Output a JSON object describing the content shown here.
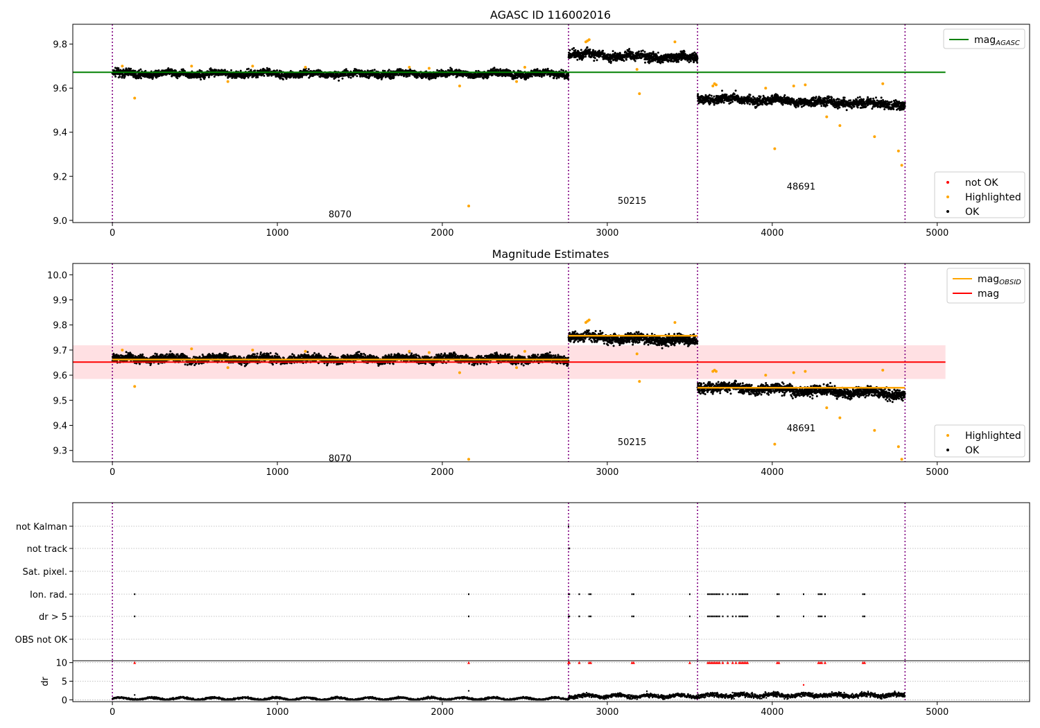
{
  "figure": {
    "background": "#ffffff",
    "colors": {
      "ok": "#000000",
      "highlighted": "#ffa500",
      "not_ok": "#ff0000",
      "agasc_line": "#008000",
      "obsid_line": "#ffa500",
      "mag_line": "#ff0000",
      "mag_band": "#ffe0e3",
      "obs_boundary": "#800080",
      "grid": "#b0b0b0"
    },
    "obs_boundaries": [
      0,
      2765,
      3547,
      4805
    ]
  },
  "chart_data": [
    {
      "id": "top",
      "type": "scatter",
      "title": "AGASC ID 116002016",
      "xlim": [
        -240,
        5560
      ],
      "ylim": [
        8.99,
        9.89
      ],
      "xticks": [
        0,
        1000,
        2000,
        3000,
        4000,
        5000
      ],
      "xtick_labels": [
        "0",
        "1000",
        "2000",
        "3000",
        "4000",
        "5000"
      ],
      "yticks": [
        9.0,
        9.2,
        9.4,
        9.6,
        9.8
      ],
      "ytick_labels": [
        "9.0",
        "9.2",
        "9.4",
        "9.6",
        "9.8"
      ],
      "segments": [
        {
          "obsid": "8070",
          "x": [
            0,
            2765
          ],
          "level": 9.665,
          "spread": 0.011,
          "drift": 0
        },
        {
          "obsid": "50215",
          "x": [
            2765,
            3547
          ],
          "level": 9.755,
          "spread": 0.014,
          "drift": -0.02
        },
        {
          "obsid": "48691",
          "x": [
            3547,
            4805
          ],
          "level": 9.555,
          "spread": 0.014,
          "drift": -0.03
        }
      ],
      "obsid_labels": [
        {
          "text": "8070",
          "x": 1380,
          "y": 9.03
        },
        {
          "text": "50215",
          "x": 3150,
          "y": 9.09
        },
        {
          "text": "48691",
          "x": 4175,
          "y": 9.155
        }
      ],
      "highlighted_points": [
        [
          60,
          9.7
        ],
        [
          135,
          9.555
        ],
        [
          480,
          9.7
        ],
        [
          700,
          9.63
        ],
        [
          850,
          9.7
        ],
        [
          1170,
          9.695
        ],
        [
          1800,
          9.695
        ],
        [
          1920,
          9.69
        ],
        [
          2105,
          9.61
        ],
        [
          2160,
          9.065
        ],
        [
          2450,
          9.63
        ],
        [
          2500,
          9.695
        ],
        [
          2870,
          9.81
        ],
        [
          2880,
          9.815
        ],
        [
          2890,
          9.82
        ],
        [
          3180,
          9.685
        ],
        [
          3195,
          9.575
        ],
        [
          3410,
          9.81
        ],
        [
          3640,
          9.61
        ],
        [
          3650,
          9.62
        ],
        [
          3660,
          9.615
        ],
        [
          3960,
          9.6
        ],
        [
          4015,
          9.325
        ],
        [
          4130,
          9.61
        ],
        [
          4200,
          9.615
        ],
        [
          4330,
          9.47
        ],
        [
          4410,
          9.43
        ],
        [
          4620,
          9.38
        ],
        [
          4670,
          9.62
        ],
        [
          4765,
          9.315
        ],
        [
          4785,
          9.25
        ]
      ],
      "not_ok_points": [],
      "lines": [
        {
          "name": "mag_AGASC",
          "y": 9.672,
          "x": [
            -240,
            5050
          ]
        }
      ],
      "legends": [
        {
          "position": "top-right",
          "entries": [
            {
              "label": "mag",
              "sub": "AGASC",
              "marker": "line",
              "color": "#008000"
            }
          ]
        },
        {
          "position": "bottom-right",
          "entries": [
            {
              "label": "not OK",
              "marker": "dot",
              "color": "#ff0000"
            },
            {
              "label": "Highlighted",
              "marker": "dot",
              "color": "#ffa500"
            },
            {
              "label": "OK",
              "marker": "dot",
              "color": "#000000"
            }
          ]
        }
      ]
    },
    {
      "id": "middle",
      "type": "scatter",
      "title": "Magnitude Estimates",
      "xlim": [
        -240,
        5560
      ],
      "ylim": [
        9.255,
        10.045
      ],
      "xticks": [
        0,
        1000,
        2000,
        3000,
        4000,
        5000
      ],
      "xtick_labels": [
        "0",
        "1000",
        "2000",
        "3000",
        "4000",
        "5000"
      ],
      "yticks": [
        9.3,
        9.4,
        9.5,
        9.6,
        9.7,
        9.8,
        9.9,
        10.0
      ],
      "ytick_labels": [
        "9.3",
        "9.4",
        "9.5",
        "9.6",
        "9.7",
        "9.8",
        "9.9",
        "10.0"
      ],
      "segments": [
        {
          "obsid": "8070",
          "x": [
            0,
            2765
          ],
          "level": 9.665,
          "spread": 0.011,
          "drift": 0
        },
        {
          "obsid": "50215",
          "x": [
            2765,
            3547
          ],
          "level": 9.755,
          "spread": 0.014,
          "drift": -0.02
        },
        {
          "obsid": "48691",
          "x": [
            3547,
            4805
          ],
          "level": 9.555,
          "spread": 0.014,
          "drift": -0.03
        }
      ],
      "obsid_labels": [
        {
          "text": "8070",
          "x": 1380,
          "y": 9.27
        },
        {
          "text": "50215",
          "x": 3150,
          "y": 9.335
        },
        {
          "text": "48691",
          "x": 4175,
          "y": 9.39
        }
      ],
      "highlighted_points": [
        [
          60,
          9.7
        ],
        [
          135,
          9.555
        ],
        [
          480,
          9.705
        ],
        [
          700,
          9.63
        ],
        [
          850,
          9.7
        ],
        [
          1170,
          9.695
        ],
        [
          1800,
          9.695
        ],
        [
          1920,
          9.69
        ],
        [
          2105,
          9.61
        ],
        [
          2160,
          9.265
        ],
        [
          2450,
          9.63
        ],
        [
          2500,
          9.695
        ],
        [
          2870,
          9.81
        ],
        [
          2880,
          9.815
        ],
        [
          2890,
          9.82
        ],
        [
          3180,
          9.685
        ],
        [
          3195,
          9.575
        ],
        [
          3410,
          9.81
        ],
        [
          3640,
          9.615
        ],
        [
          3650,
          9.62
        ],
        [
          3660,
          9.615
        ],
        [
          3960,
          9.6
        ],
        [
          4015,
          9.325
        ],
        [
          4130,
          9.61
        ],
        [
          4200,
          9.615
        ],
        [
          4330,
          9.47
        ],
        [
          4410,
          9.43
        ],
        [
          4620,
          9.38
        ],
        [
          4670,
          9.62
        ],
        [
          4765,
          9.315
        ],
        [
          4785,
          9.265
        ]
      ],
      "step_lines": [
        {
          "name": "mag_OBSID",
          "color": "#ffa500",
          "steps": [
            [
              0,
              2765,
              9.662
            ],
            [
              2765,
              3547,
              9.757
            ],
            [
              3547,
              4805,
              9.55
            ]
          ]
        }
      ],
      "mag_line": {
        "y": 9.652,
        "band": [
          9.585,
          9.719
        ],
        "x": [
          -240,
          5050
        ]
      },
      "legends": [
        {
          "position": "top-right",
          "entries": [
            {
              "label": "mag",
              "sub": "OBSID",
              "marker": "line",
              "color": "#ffa500"
            },
            {
              "label": "mag",
              "marker": "line",
              "color": "#ff0000"
            }
          ]
        },
        {
          "position": "bottom-right",
          "entries": [
            {
              "label": "Highlighted",
              "marker": "dot",
              "color": "#ffa500"
            },
            {
              "label": "OK",
              "marker": "dot",
              "color": "#000000"
            }
          ]
        }
      ]
    },
    {
      "id": "flags",
      "type": "scatter",
      "xlim": [
        -240,
        5560
      ],
      "categories": [
        "not Kalman",
        "not track",
        "Sat. pixel.",
        "Ion. rad.",
        "dr > 5",
        "OBS not OK"
      ],
      "flag_points": {
        "not Kalman": [
          2765
        ],
        "not track": [
          2765,
          2770
        ],
        "Sat. pixel.": [],
        "Ion. rad.": [
          135,
          2160,
          2765,
          2770,
          2830,
          2890,
          2900,
          3150,
          3160,
          3500,
          3610,
          3620,
          3630,
          3640,
          3650,
          3660,
          3670,
          3680,
          3700,
          3730,
          3760,
          3780,
          3800,
          3810,
          3820,
          3830,
          3840,
          3850,
          4030,
          4040,
          4190,
          4280,
          4290,
          4300,
          4320,
          4550,
          4560
        ],
        "dr > 5": [
          135,
          2160,
          2765,
          2770,
          2830,
          2890,
          2900,
          3150,
          3160,
          3500,
          3610,
          3620,
          3630,
          3640,
          3650,
          3660,
          3670,
          3680,
          3700,
          3730,
          3760,
          3780,
          3800,
          3810,
          3820,
          3830,
          3840,
          3850,
          4030,
          4040,
          4190,
          4280,
          4290,
          4300,
          4320,
          4550,
          4560
        ],
        "OBS not OK": []
      }
    },
    {
      "id": "dr",
      "type": "scatter",
      "ylabel": "dr",
      "xlim": [
        -240,
        5560
      ],
      "ylim": [
        -0.5,
        10.5
      ],
      "xticks": [
        0,
        1000,
        2000,
        3000,
        4000,
        5000
      ],
      "xtick_labels": [
        "0",
        "1000",
        "2000",
        "3000",
        "4000",
        "5000"
      ],
      "yticks": [
        0,
        5,
        10
      ],
      "ytick_labels": [
        "0",
        "5",
        "10"
      ],
      "dr_segments": [
        {
          "x": [
            0,
            2765
          ],
          "level": 0.3,
          "spread": 0.25
        },
        {
          "x": [
            2765,
            3547
          ],
          "level": 1.0,
          "spread": 0.5
        },
        {
          "x": [
            3547,
            4805
          ],
          "level": 1.2,
          "spread": 0.6
        }
      ],
      "dr_outliers": [
        [
          135,
          1.3
        ],
        [
          2160,
          2.4
        ],
        [
          3240,
          2.3
        ],
        [
          4190,
          4.0
        ]
      ],
      "clipped_points_at_10": [
        135,
        2160,
        2765,
        2770,
        2830,
        2890,
        2900,
        3150,
        3160,
        3500,
        3610,
        3620,
        3630,
        3640,
        3650,
        3660,
        3670,
        3680,
        3700,
        3730,
        3760,
        3780,
        3800,
        3810,
        3820,
        3830,
        3840,
        3850,
        4030,
        4040,
        4280,
        4290,
        4300,
        4320,
        4550,
        4560
      ]
    }
  ]
}
